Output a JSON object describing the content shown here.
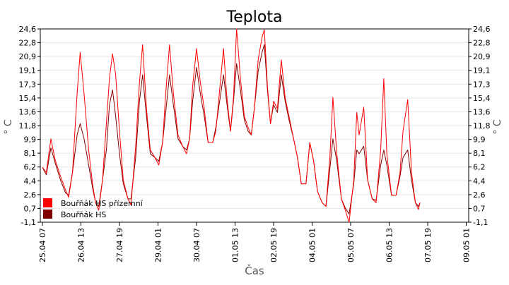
{
  "chart_data": {
    "type": "line",
    "title": "Teplota",
    "xlabel": "Čas",
    "ylabel": "° C",
    "ylim": [
      -1.1,
      24.6
    ],
    "yticks": [
      "-1,1",
      "0,7",
      "2,6",
      "4,4",
      "6,2",
      "8,1",
      "9,9",
      "11,8",
      "13,6",
      "15,4",
      "17,3",
      "19,1",
      "20,9",
      "22,8",
      "24,6"
    ],
    "xticks": [
      "25.04 07",
      "26.04 13",
      "27.04 19",
      "29.04 01",
      "30.04 07",
      "01.05 13",
      "02.05 19",
      "04.05 01",
      "05.05 07",
      "06.05 13",
      "07.05 19",
      "09.05 01"
    ],
    "grid": true,
    "legend_position": "bottom-left",
    "series": [
      {
        "name": "Bouřňák HS přízemní",
        "color": "#ff0000",
        "points": [
          [
            0,
            6.2
          ],
          [
            0.1,
            5.5
          ],
          [
            0.22,
            10.0
          ],
          [
            0.33,
            7.2
          ],
          [
            0.47,
            5.0
          ],
          [
            0.6,
            3.2
          ],
          [
            0.68,
            2.2
          ],
          [
            0.78,
            5.5
          ],
          [
            0.9,
            16.0
          ],
          [
            0.98,
            21.5
          ],
          [
            1.08,
            16.0
          ],
          [
            1.2,
            8.5
          ],
          [
            1.3,
            4.0
          ],
          [
            1.38,
            1.5
          ],
          [
            1.46,
            0.5
          ],
          [
            1.56,
            4.5
          ],
          [
            1.66,
            12.0
          ],
          [
            1.74,
            18.0
          ],
          [
            1.82,
            21.3
          ],
          [
            1.9,
            18.5
          ],
          [
            2.0,
            11.0
          ],
          [
            2.1,
            4.5
          ],
          [
            2.22,
            2.0
          ],
          [
            2.3,
            1.2
          ],
          [
            2.42,
            9.0
          ],
          [
            2.52,
            17.5
          ],
          [
            2.6,
            22.5
          ],
          [
            2.7,
            14.0
          ],
          [
            2.8,
            8.5
          ],
          [
            2.92,
            7.5
          ],
          [
            3.02,
            6.5
          ],
          [
            3.12,
            9.5
          ],
          [
            3.2,
            16.0
          ],
          [
            3.3,
            22.5
          ],
          [
            3.4,
            16.0
          ],
          [
            3.52,
            10.5
          ],
          [
            3.64,
            9.0
          ],
          [
            3.74,
            8.0
          ],
          [
            3.82,
            10.0
          ],
          [
            3.9,
            17.0
          ],
          [
            4.0,
            22.0
          ],
          [
            4.1,
            17.5
          ],
          [
            4.2,
            14.0
          ],
          [
            4.3,
            9.5
          ],
          [
            4.42,
            9.5
          ],
          [
            4.5,
            11.0
          ],
          [
            4.6,
            16.5
          ],
          [
            4.7,
            22.0
          ],
          [
            4.78,
            16.0
          ],
          [
            4.88,
            11.0
          ],
          [
            4.96,
            15.5
          ],
          [
            5.04,
            24.6
          ],
          [
            5.14,
            18.0
          ],
          [
            5.24,
            13.0
          ],
          [
            5.34,
            11.5
          ],
          [
            5.42,
            10.5
          ],
          [
            5.5,
            14.0
          ],
          [
            5.6,
            20.5
          ],
          [
            5.7,
            23.5
          ],
          [
            5.76,
            24.5
          ],
          [
            5.84,
            17.0
          ],
          [
            5.92,
            12.0
          ],
          [
            6.0,
            15.0
          ],
          [
            6.1,
            14.0
          ],
          [
            6.2,
            20.5
          ],
          [
            6.3,
            15.5
          ],
          [
            6.4,
            13.0
          ],
          [
            6.52,
            10.0
          ],
          [
            6.62,
            7.5
          ],
          [
            6.72,
            4.0
          ],
          [
            6.84,
            4.0
          ],
          [
            6.94,
            9.5
          ],
          [
            7.04,
            7.0
          ],
          [
            7.14,
            3.0
          ],
          [
            7.26,
            1.5
          ],
          [
            7.36,
            1.0
          ],
          [
            7.46,
            7.5
          ],
          [
            7.54,
            15.5
          ],
          [
            7.64,
            8.0
          ],
          [
            7.76,
            2.0
          ],
          [
            7.86,
            0.5
          ],
          [
            7.96,
            -1.1
          ],
          [
            8.08,
            4.5
          ],
          [
            8.16,
            13.5
          ],
          [
            8.22,
            10.5
          ],
          [
            8.34,
            14.2
          ],
          [
            8.44,
            4.5
          ],
          [
            8.56,
            2.0
          ],
          [
            8.66,
            1.5
          ],
          [
            8.78,
            8.5
          ],
          [
            8.86,
            18.0
          ],
          [
            8.94,
            8.0
          ],
          [
            9.06,
            2.5
          ],
          [
            9.18,
            2.5
          ],
          [
            9.28,
            5.5
          ],
          [
            9.36,
            11.0
          ],
          [
            9.48,
            15.2
          ],
          [
            9.58,
            5.5
          ],
          [
            9.68,
            1.5
          ],
          [
            9.76,
            0.6
          ],
          [
            9.8,
            1.5
          ]
        ]
      },
      {
        "name": "Bouřňák HS",
        "color": "#800000",
        "points": [
          [
            0,
            6.2
          ],
          [
            0.1,
            5.2
          ],
          [
            0.22,
            8.8
          ],
          [
            0.33,
            6.8
          ],
          [
            0.47,
            4.5
          ],
          [
            0.6,
            2.8
          ],
          [
            0.68,
            2.5
          ],
          [
            0.78,
            5.5
          ],
          [
            0.9,
            10.5
          ],
          [
            0.98,
            12.0
          ],
          [
            1.08,
            10.0
          ],
          [
            1.2,
            6.5
          ],
          [
            1.3,
            3.5
          ],
          [
            1.38,
            1.5
          ],
          [
            1.46,
            1.0
          ],
          [
            1.56,
            4.5
          ],
          [
            1.66,
            8.5
          ],
          [
            1.74,
            14.5
          ],
          [
            1.82,
            16.5
          ],
          [
            1.9,
            13.0
          ],
          [
            2.0,
            8.0
          ],
          [
            2.1,
            4.0
          ],
          [
            2.22,
            2.0
          ],
          [
            2.3,
            2.0
          ],
          [
            2.42,
            7.5
          ],
          [
            2.52,
            15.0
          ],
          [
            2.6,
            18.5
          ],
          [
            2.7,
            13.0
          ],
          [
            2.8,
            8.0
          ],
          [
            2.92,
            7.5
          ],
          [
            3.02,
            7.0
          ],
          [
            3.12,
            9.5
          ],
          [
            3.2,
            13.5
          ],
          [
            3.3,
            18.5
          ],
          [
            3.4,
            14.5
          ],
          [
            3.52,
            10.0
          ],
          [
            3.64,
            9.0
          ],
          [
            3.74,
            8.5
          ],
          [
            3.82,
            10.0
          ],
          [
            3.9,
            15.0
          ],
          [
            4.0,
            19.5
          ],
          [
            4.1,
            16.0
          ],
          [
            4.2,
            13.0
          ],
          [
            4.3,
            9.5
          ],
          [
            4.42,
            9.5
          ],
          [
            4.5,
            11.5
          ],
          [
            4.6,
            15.0
          ],
          [
            4.7,
            18.5
          ],
          [
            4.78,
            15.0
          ],
          [
            4.88,
            11.0
          ],
          [
            4.96,
            15.0
          ],
          [
            5.04,
            20.0
          ],
          [
            5.14,
            16.5
          ],
          [
            5.24,
            12.5
          ],
          [
            5.34,
            11.0
          ],
          [
            5.42,
            10.5
          ],
          [
            5.5,
            14.0
          ],
          [
            5.6,
            19.0
          ],
          [
            5.7,
            21.5
          ],
          [
            5.76,
            22.5
          ],
          [
            5.84,
            16.5
          ],
          [
            5.92,
            12.0
          ],
          [
            6.0,
            14.5
          ],
          [
            6.1,
            13.5
          ],
          [
            6.2,
            18.5
          ],
          [
            6.3,
            15.0
          ],
          [
            6.4,
            12.5
          ],
          [
            6.52,
            10.0
          ],
          [
            6.62,
            7.5
          ],
          [
            6.72,
            4.0
          ],
          [
            6.84,
            4.0
          ],
          [
            6.94,
            9.5
          ],
          [
            7.04,
            7.0
          ],
          [
            7.14,
            3.0
          ],
          [
            7.26,
            1.5
          ],
          [
            7.36,
            1.0
          ],
          [
            7.46,
            6.0
          ],
          [
            7.54,
            10.0
          ],
          [
            7.64,
            7.0
          ],
          [
            7.76,
            2.0
          ],
          [
            7.86,
            0.8
          ],
          [
            7.96,
            0.0
          ],
          [
            8.08,
            4.0
          ],
          [
            8.16,
            8.5
          ],
          [
            8.22,
            8.0
          ],
          [
            8.34,
            9.0
          ],
          [
            8.44,
            4.5
          ],
          [
            8.56,
            2.0
          ],
          [
            8.66,
            1.8
          ],
          [
            8.78,
            6.5
          ],
          [
            8.86,
            8.5
          ],
          [
            8.94,
            6.5
          ],
          [
            9.06,
            2.5
          ],
          [
            9.18,
            2.5
          ],
          [
            9.28,
            5.0
          ],
          [
            9.36,
            7.5
          ],
          [
            9.48,
            8.5
          ],
          [
            9.58,
            4.5
          ],
          [
            9.68,
            1.5
          ],
          [
            9.76,
            1.0
          ],
          [
            9.8,
            1.5
          ]
        ]
      }
    ]
  }
}
